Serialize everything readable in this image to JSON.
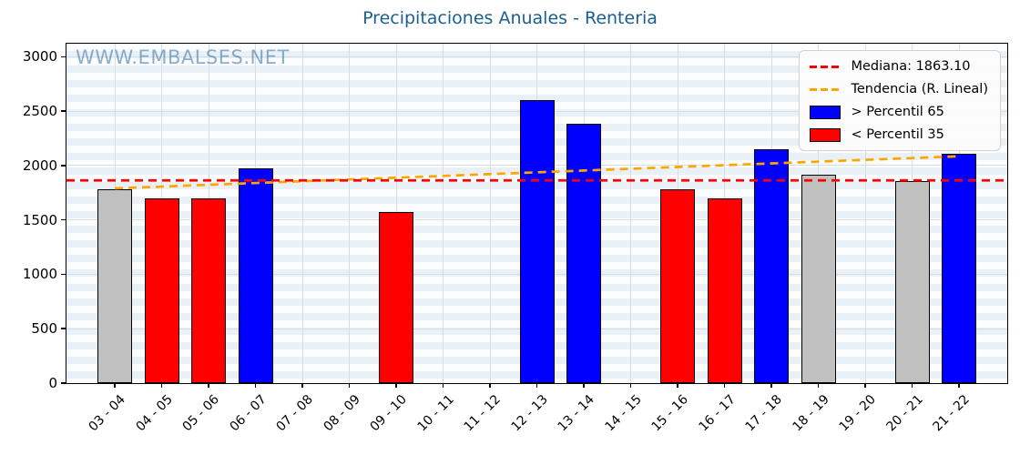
{
  "title": "Precipitaciones Anuales - Renteria",
  "watermark": "WWW.EMBALSES.NET",
  "colors": {
    "title": "#1a5f8e",
    "watermark": "rgba(49,110,160,0.55)",
    "median_line": "#ff0000",
    "trend_line": "#ffa500",
    "bar_above_p65": "#0000ff",
    "bar_below_p35": "#ff0000",
    "bar_middle": "#c0c0c0",
    "bar_edge": "#000000",
    "grid": "#d8dde2"
  },
  "legend": {
    "items": [
      {
        "label": "Mediana: 1863.10",
        "swatch": "dash",
        "color": "#ff0000"
      },
      {
        "label": "Tendencia (R. Lineal)",
        "swatch": "dash",
        "color": "#ffa500"
      },
      {
        "label": "> Percentil 65",
        "swatch": "rect",
        "color": "#0000ff"
      },
      {
        "label": "< Percentil 35",
        "swatch": "rect",
        "color": "#ff0000"
      }
    ]
  },
  "chart_data": {
    "type": "bar",
    "title": "Precipitaciones Anuales - Renteria",
    "xlabel": "",
    "ylabel": "",
    "categories": [
      "03 - 04",
      "04 - 05",
      "05 - 06",
      "06 - 07",
      "07 - 08",
      "08 - 09",
      "09 - 10",
      "10 - 11",
      "11 - 12",
      "12 - 13",
      "13 - 14",
      "14 - 15",
      "15 - 16",
      "16 - 17",
      "17 - 18",
      "18 - 19",
      "19 - 20",
      "20 - 21",
      "21 - 22"
    ],
    "values": [
      1780,
      1695,
      1695,
      1975,
      null,
      null,
      1570,
      null,
      null,
      2605,
      2385,
      null,
      1785,
      1695,
      2150,
      1915,
      null,
      1860,
      2110
    ],
    "bar_classes": [
      "middle",
      "below_p35",
      "below_p35",
      "above_p65",
      null,
      null,
      "below_p35",
      null,
      null,
      "above_p65",
      "above_p65",
      null,
      "below_p35",
      "below_p35",
      "above_p65",
      "middle",
      null,
      "middle",
      "above_p65"
    ],
    "median": 1863.1,
    "trend_line": {
      "start_value": 1790,
      "end_value": 2085,
      "label": "Tendencia (R. Lineal)"
    },
    "ylim": [
      0,
      3120
    ],
    "yticks": [
      0,
      500,
      1000,
      1500,
      2000,
      2500,
      3000
    ],
    "grid": true,
    "legend_position": "upper right"
  }
}
